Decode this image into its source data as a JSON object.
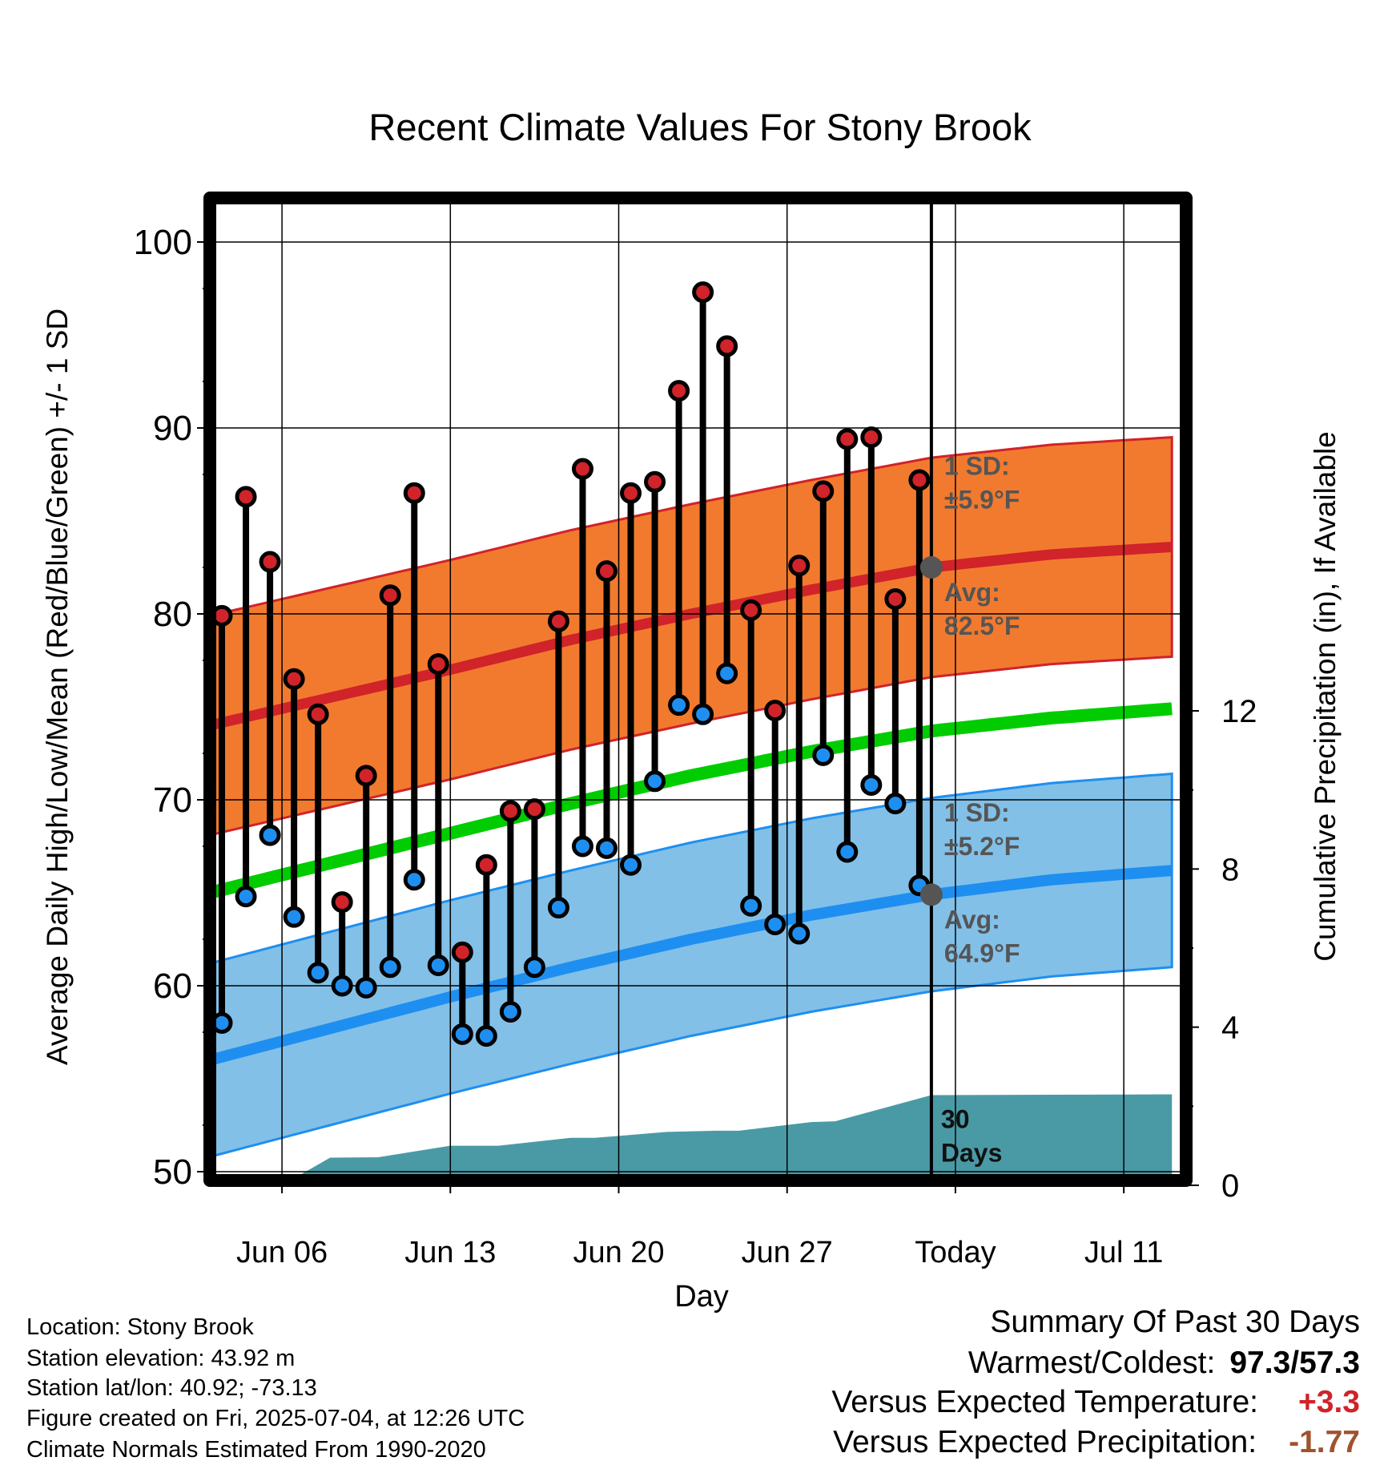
{
  "title": "Recent Climate Values For Stony Brook",
  "chart_data": {
    "type": "line",
    "title": "Recent Climate Values For Stony Brook",
    "xlabel": "Day",
    "ylabel": "Average Daily High/Low/Mean (Red/Blue/Green) +/- 1 SD",
    "y2label": "Cumulative Precipitation (in), If Available",
    "ylim": [
      50,
      100
    ],
    "y2lim": [
      0,
      14
    ],
    "yticks": [
      "50",
      "60",
      "70",
      "80",
      "90",
      "100"
    ],
    "y2ticks": [
      "0",
      "4",
      "8",
      "12"
    ],
    "xticks": [
      "Jun 06",
      "Jun 13",
      "Jun 20",
      "Jun 27",
      "Today",
      "Jul 11"
    ],
    "today_index": 30,
    "grid": true,
    "days": [
      1,
      2,
      3,
      4,
      5,
      6,
      7,
      8,
      9,
      10,
      11,
      12,
      13,
      14,
      15,
      16,
      17,
      18,
      19,
      20,
      21,
      22,
      23,
      24,
      25,
      26,
      27,
      28,
      29,
      30
    ],
    "highs": [
      79.9,
      86.3,
      82.8,
      76.5,
      74.6,
      64.5,
      71.3,
      81.0,
      86.5,
      77.3,
      61.8,
      66.5,
      69.4,
      69.5,
      79.6,
      87.8,
      82.3,
      86.5,
      87.1,
      92.0,
      97.3,
      94.4,
      80.2,
      74.8,
      82.6,
      86.6,
      89.4,
      89.5,
      80.8,
      87.2
    ],
    "lows": [
      58.0,
      64.8,
      68.1,
      63.7,
      60.7,
      60.0,
      59.9,
      61.0,
      65.7,
      61.1,
      57.4,
      57.3,
      58.6,
      61.0,
      64.2,
      67.5,
      67.4,
      66.5,
      71.0,
      75.1,
      74.6,
      76.8,
      64.3,
      63.3,
      62.8,
      72.4,
      67.2,
      70.8,
      69.8,
      65.4
    ],
    "series": [
      {
        "name": "Avg",
        "label": "Avg:",
        "value_label": "82.5°F",
        "color": "#d0232a",
        "x": [
          0,
          5,
          10,
          15,
          20,
          25,
          30,
          35,
          40
        ],
        "values": [
          74.0,
          75.5,
          77.0,
          78.6,
          80.0,
          81.3,
          82.5,
          83.2,
          83.6
        ]
      },
      {
        "name": "1 SD",
        "label": "1 SD:",
        "value_label": "±5.9°F",
        "sd": 5.9,
        "color": "#f27a2e"
      },
      {
        "name": "Avg",
        "label": "Avg:",
        "value_label": "64.9°F",
        "color": "#1e8ff0",
        "x": [
          0,
          5,
          10,
          15,
          20,
          25,
          30,
          35,
          40
        ],
        "values": [
          56.0,
          57.7,
          59.4,
          61.0,
          62.5,
          63.8,
          64.9,
          65.7,
          66.2
        ]
      },
      {
        "name": "1 SD",
        "label": "1 SD:",
        "value_label": "±5.2°F",
        "sd": 5.2,
        "color": "#82c0e8"
      },
      {
        "name": "Mean",
        "color": "#00cc00",
        "x": [
          0,
          5,
          10,
          15,
          20,
          25,
          30,
          35,
          40
        ],
        "values": [
          65.0,
          66.6,
          68.2,
          69.8,
          71.3,
          72.6,
          73.7,
          74.4,
          74.9
        ]
      }
    ],
    "precip_label": "30 Days",
    "precip_color": "#4a9aa6",
    "precip_x": [
      3,
      5,
      7,
      10,
      12,
      15,
      16,
      18,
      19,
      21,
      22,
      25,
      26,
      30,
      40
    ],
    "precip_cum": [
      0.0,
      0.7,
      0.71,
      1.0,
      1.0,
      1.2,
      1.2,
      1.3,
      1.35,
      1.38,
      1.38,
      1.6,
      1.62,
      2.28,
      2.3
    ]
  },
  "info": {
    "location": "Location: Stony Brook",
    "elevation": "Station elevation: 43.92 m",
    "latlon": "Station lat/lon: 40.92; -73.13",
    "created": "Figure created on Fri, 2025-07-04, at 12:26 UTC",
    "normals": "Climate Normals Estimated From 1990-2020"
  },
  "summary": {
    "heading": "Summary Of Past 30 Days",
    "warmest_label": "Warmest/Coldest:",
    "warmest_value": "97.3/57.3",
    "temp_label": "Versus Expected Temperature:",
    "temp_value": "+3.3",
    "temp_color": "#d0232a",
    "precip_label": "Versus Expected Precipitation:",
    "precip_value": "-1.77",
    "precip_color": "#a0522d"
  }
}
